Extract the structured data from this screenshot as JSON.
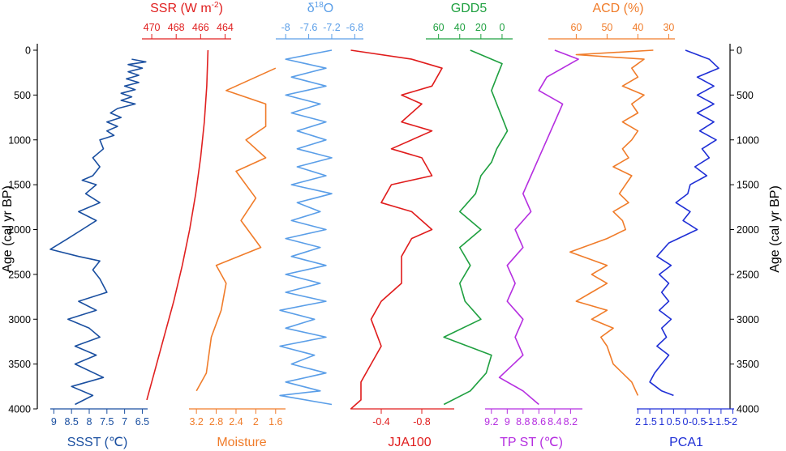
{
  "chart_data": {
    "type": "line",
    "y_axis": {
      "label": "Age (cal yr BP)",
      "ticks": [
        "0",
        "500",
        "1000",
        "1500",
        "2000",
        "2500",
        "3000",
        "3500",
        "4000"
      ],
      "range": [
        0,
        4000
      ],
      "inverted": true
    },
    "series": [
      {
        "name": "SSST (℃)",
        "label_text": "SSST (",
        "unit_text": "℃)",
        "color": "#1a4fa0",
        "axis_side": "bottom",
        "ticks": [
          "9",
          "8.5",
          "8",
          "7.5",
          "7",
          "6.5"
        ],
        "xlim": [
          9.1,
          6.35
        ],
        "points": [
          [
            6.8,
            100
          ],
          [
            6.4,
            130
          ],
          [
            6.9,
            160
          ],
          [
            6.5,
            200
          ],
          [
            6.9,
            240
          ],
          [
            6.6,
            280
          ],
          [
            6.95,
            320
          ],
          [
            6.6,
            360
          ],
          [
            7.0,
            400
          ],
          [
            6.7,
            440
          ],
          [
            7.1,
            480
          ],
          [
            6.8,
            520
          ],
          [
            7.1,
            560
          ],
          [
            6.7,
            600
          ],
          [
            7.2,
            650
          ],
          [
            7.4,
            700
          ],
          [
            7.1,
            750
          ],
          [
            7.5,
            800
          ],
          [
            7.2,
            850
          ],
          [
            7.5,
            900
          ],
          [
            7.3,
            950
          ],
          [
            7.7,
            1000
          ],
          [
            7.6,
            1100
          ],
          [
            7.9,
            1200
          ],
          [
            7.7,
            1300
          ],
          [
            7.9,
            1400
          ],
          [
            8.2,
            1450
          ],
          [
            7.8,
            1500
          ],
          [
            8.1,
            1600
          ],
          [
            7.7,
            1700
          ],
          [
            8.3,
            1800
          ],
          [
            7.8,
            1900
          ],
          [
            8.2,
            2000
          ],
          [
            8.6,
            2100
          ],
          [
            9.1,
            2220
          ],
          [
            8.3,
            2300
          ],
          [
            7.7,
            2350
          ],
          [
            7.9,
            2450
          ],
          [
            7.7,
            2550
          ],
          [
            7.5,
            2700
          ],
          [
            8.3,
            2800
          ],
          [
            7.8,
            2900
          ],
          [
            8.6,
            3000
          ],
          [
            8.0,
            3100
          ],
          [
            7.7,
            3200
          ],
          [
            8.4,
            3300
          ],
          [
            7.8,
            3400
          ],
          [
            8.4,
            3500
          ],
          [
            7.6,
            3650
          ],
          [
            8.5,
            3750
          ],
          [
            7.9,
            3850
          ],
          [
            8.4,
            3950
          ]
        ]
      },
      {
        "name": "SSR (W m-2)",
        "label_text": "SSR (W m",
        "label_sup": "-2",
        "label_close": ")",
        "color": "#e02020",
        "axis_side": "top",
        "ticks": [
          "470",
          "468",
          "466",
          "464"
        ],
        "xlim": [
          471.0,
          463.5
        ],
        "points": [
          [
            465.4,
            0
          ],
          [
            465.5,
            400
          ],
          [
            465.7,
            800
          ],
          [
            466.0,
            1200
          ],
          [
            466.4,
            1600
          ],
          [
            466.9,
            2000
          ],
          [
            467.5,
            2400
          ],
          [
            468.2,
            2800
          ],
          [
            469.0,
            3200
          ],
          [
            469.8,
            3600
          ],
          [
            470.4,
            3900
          ]
        ]
      },
      {
        "name": "Moisture",
        "color": "#f07c2a",
        "axis_side": "bottom",
        "ticks": [
          "3.2",
          "2.8",
          "2.4",
          "2",
          "1.6"
        ],
        "xlim": [
          3.35,
          1.4
        ],
        "points": [
          [
            1.6,
            200
          ],
          [
            2.6,
            450
          ],
          [
            1.8,
            600
          ],
          [
            1.8,
            850
          ],
          [
            2.2,
            1000
          ],
          [
            1.8,
            1200
          ],
          [
            2.4,
            1350
          ],
          [
            2.0,
            1650
          ],
          [
            2.3,
            1900
          ],
          [
            1.9,
            2200
          ],
          [
            2.8,
            2400
          ],
          [
            2.6,
            2600
          ],
          [
            2.7,
            2900
          ],
          [
            2.9,
            3200
          ],
          [
            3.0,
            3600
          ],
          [
            3.2,
            3800
          ]
        ]
      },
      {
        "name": "δ18O",
        "label_text": "δ",
        "label_sup": "18",
        "label_close": "O",
        "color": "#5a9ee8",
        "axis_side": "top",
        "ticks": [
          "-8",
          "-7.6",
          "-7.2",
          "-6.8"
        ],
        "xlim": [
          -8.2,
          -6.65
        ],
        "points": [
          [
            -7.2,
            0
          ],
          [
            -8.0,
            100
          ],
          [
            -7.3,
            200
          ],
          [
            -7.9,
            300
          ],
          [
            -7.3,
            400
          ],
          [
            -8.0,
            500
          ],
          [
            -7.4,
            600
          ],
          [
            -7.9,
            700
          ],
          [
            -7.3,
            800
          ],
          [
            -7.8,
            900
          ],
          [
            -7.3,
            1000
          ],
          [
            -7.8,
            1100
          ],
          [
            -7.2,
            1200
          ],
          [
            -7.8,
            1300
          ],
          [
            -7.3,
            1400
          ],
          [
            -7.9,
            1500
          ],
          [
            -7.2,
            1600
          ],
          [
            -7.8,
            1700
          ],
          [
            -7.4,
            1800
          ],
          [
            -7.9,
            1900
          ],
          [
            -7.3,
            2000
          ],
          [
            -8.0,
            2100
          ],
          [
            -7.4,
            2200
          ],
          [
            -7.9,
            2300
          ],
          [
            -7.3,
            2400
          ],
          [
            -8.0,
            2500
          ],
          [
            -7.4,
            2600
          ],
          [
            -8.0,
            2700
          ],
          [
            -7.3,
            2800
          ],
          [
            -8.1,
            2900
          ],
          [
            -7.5,
            3000
          ],
          [
            -8.0,
            3100
          ],
          [
            -7.3,
            3200
          ],
          [
            -8.1,
            3300
          ],
          [
            -7.5,
            3400
          ],
          [
            -7.9,
            3500
          ],
          [
            -7.3,
            3600
          ],
          [
            -8.0,
            3700
          ],
          [
            -7.4,
            3800
          ],
          [
            -8.1,
            3850
          ],
          [
            -7.2,
            3950
          ]
        ]
      },
      {
        "name": "JJA100",
        "color": "#e01c1c",
        "axis_side": "bottom",
        "ticks": [
          "-0.4",
          "-0.8"
        ],
        "xlim": [
          -0.12,
          -1.12
        ],
        "points": [
          [
            -0.1,
            0
          ],
          [
            -0.7,
            100
          ],
          [
            -1.0,
            200
          ],
          [
            -0.9,
            400
          ],
          [
            -0.6,
            500
          ],
          [
            -0.8,
            600
          ],
          [
            -0.6,
            800
          ],
          [
            -0.9,
            900
          ],
          [
            -0.5,
            1100
          ],
          [
            -0.8,
            1200
          ],
          [
            -0.9,
            1400
          ],
          [
            -0.5,
            1500
          ],
          [
            -0.4,
            1700
          ],
          [
            -0.7,
            1800
          ],
          [
            -0.9,
            2000
          ],
          [
            -0.7,
            2100
          ],
          [
            -0.6,
            2300
          ],
          [
            -0.6,
            2600
          ],
          [
            -0.4,
            2800
          ],
          [
            -0.3,
            3000
          ],
          [
            -0.4,
            3300
          ],
          [
            -0.3,
            3500
          ],
          [
            -0.2,
            3700
          ],
          [
            -0.2,
            3900
          ],
          [
            -0.1,
            4000
          ]
        ]
      },
      {
        "name": "GDD5",
        "color": "#1fa040",
        "axis_side": "top",
        "ticks": [
          "60",
          "40",
          "20",
          "0"
        ],
        "xlim": [
          72,
          -10
        ],
        "points": [
          [
            30,
            0
          ],
          [
            0,
            150
          ],
          [
            5,
            300
          ],
          [
            10,
            450
          ],
          [
            5,
            600
          ],
          [
            0,
            750
          ],
          [
            -5,
            900
          ],
          [
            5,
            1100
          ],
          [
            10,
            1250
          ],
          [
            20,
            1400
          ],
          [
            25,
            1600
          ],
          [
            40,
            1800
          ],
          [
            20,
            2000
          ],
          [
            40,
            2200
          ],
          [
            30,
            2400
          ],
          [
            40,
            2600
          ],
          [
            35,
            2800
          ],
          [
            20,
            3000
          ],
          [
            55,
            3200
          ],
          [
            10,
            3400
          ],
          [
            15,
            3600
          ],
          [
            30,
            3800
          ],
          [
            55,
            3950
          ]
        ]
      },
      {
        "name": "TP ST (℃)",
        "label_text": "TP ST (",
        "unit_text": "℃)",
        "color": "#b52ee0",
        "axis_side": "bottom",
        "ticks": [
          "9.2",
          "9",
          "8.8",
          "8.6",
          "8.4",
          "8.2"
        ],
        "xlim": [
          9.28,
          8.05
        ],
        "points": [
          [
            8.4,
            0
          ],
          [
            8.1,
            100
          ],
          [
            8.5,
            300
          ],
          [
            8.6,
            450
          ],
          [
            8.3,
            600
          ],
          [
            8.4,
            800
          ],
          [
            8.5,
            1000
          ],
          [
            8.6,
            1200
          ],
          [
            8.7,
            1400
          ],
          [
            8.8,
            1600
          ],
          [
            8.7,
            1800
          ],
          [
            8.9,
            2000
          ],
          [
            8.8,
            2200
          ],
          [
            9.0,
            2400
          ],
          [
            8.9,
            2600
          ],
          [
            9.0,
            2800
          ],
          [
            8.8,
            3000
          ],
          [
            8.9,
            3200
          ],
          [
            8.8,
            3400
          ],
          [
            9.1,
            3650
          ],
          [
            8.8,
            3800
          ],
          [
            8.6,
            3950
          ]
        ]
      },
      {
        "name": "ACD (%)",
        "color": "#f07c2a",
        "axis_side": "top",
        "ticks": [
          "60",
          "50",
          "40",
          "30"
        ],
        "xlim": [
          68,
          28
        ],
        "points": [
          [
            35,
            0
          ],
          [
            60,
            50
          ],
          [
            38,
            100
          ],
          [
            42,
            200
          ],
          [
            40,
            300
          ],
          [
            45,
            400
          ],
          [
            38,
            500
          ],
          [
            42,
            600
          ],
          [
            40,
            700
          ],
          [
            45,
            800
          ],
          [
            40,
            900
          ],
          [
            42,
            1000
          ],
          [
            45,
            1100
          ],
          [
            43,
            1200
          ],
          [
            48,
            1300
          ],
          [
            42,
            1400
          ],
          [
            44,
            1500
          ],
          [
            46,
            1600
          ],
          [
            43,
            1700
          ],
          [
            48,
            1800
          ],
          [
            45,
            1900
          ],
          [
            44,
            2000
          ],
          [
            50,
            2100
          ],
          [
            62,
            2250
          ],
          [
            50,
            2400
          ],
          [
            55,
            2500
          ],
          [
            50,
            2600
          ],
          [
            55,
            2700
          ],
          [
            60,
            2800
          ],
          [
            50,
            2900
          ],
          [
            55,
            3000
          ],
          [
            48,
            3100
          ],
          [
            52,
            3200
          ],
          [
            50,
            3300
          ],
          [
            48,
            3500
          ],
          [
            42,
            3700
          ],
          [
            40,
            3850
          ]
        ]
      },
      {
        "name": "PCA1",
        "color": "#1f2fd6",
        "axis_side": "bottom",
        "ticks": [
          "2",
          "1.5",
          "1",
          "0.5",
          "0",
          "-0.5",
          "-1",
          "-1.5",
          "-2"
        ],
        "xlim": [
          2.05,
          -2.05
        ],
        "points": [
          [
            0,
            0
          ],
          [
            -1,
            100
          ],
          [
            -1.4,
            200
          ],
          [
            -0.5,
            300
          ],
          [
            -1.2,
            400
          ],
          [
            -0.5,
            500
          ],
          [
            -1.2,
            600
          ],
          [
            -0.5,
            700
          ],
          [
            -1.2,
            800
          ],
          [
            -0.6,
            900
          ],
          [
            -1.3,
            1000
          ],
          [
            -0.7,
            1100
          ],
          [
            -1.0,
            1200
          ],
          [
            -0.4,
            1300
          ],
          [
            -0.9,
            1400
          ],
          [
            -0.2,
            1500
          ],
          [
            -0.1,
            1600
          ],
          [
            0.4,
            1700
          ],
          [
            -0.2,
            1800
          ],
          [
            0.1,
            1900
          ],
          [
            -0.5,
            2000
          ],
          [
            0.7,
            2150
          ],
          [
            1.2,
            2300
          ],
          [
            0.6,
            2400
          ],
          [
            1.1,
            2500
          ],
          [
            0.7,
            2600
          ],
          [
            1.0,
            2700
          ],
          [
            0.7,
            2800
          ],
          [
            1.1,
            2900
          ],
          [
            0.6,
            3000
          ],
          [
            1.0,
            3100
          ],
          [
            0.8,
            3200
          ],
          [
            1.2,
            3300
          ],
          [
            0.7,
            3400
          ],
          [
            1.0,
            3500
          ],
          [
            1.3,
            3600
          ],
          [
            1.5,
            3700
          ],
          [
            1.0,
            3800
          ],
          [
            0.5,
            3850
          ]
        ]
      }
    ]
  }
}
